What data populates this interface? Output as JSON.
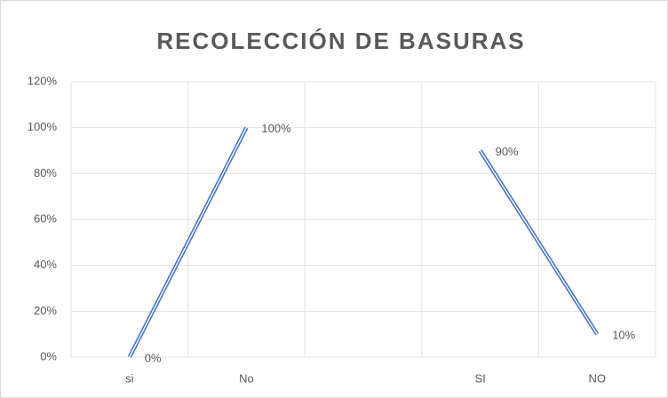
{
  "chart_data": {
    "type": "line",
    "title": "RECOLECCIÓN DE BASURAS",
    "categories": [
      "si",
      "No",
      null,
      "SI",
      "NO"
    ],
    "values": [
      0,
      100,
      null,
      90,
      10
    ],
    "value_labels": [
      "0%",
      "100%",
      null,
      "90%",
      "10%"
    ],
    "color": "#4472c4",
    "ylim": [
      0,
      120
    ],
    "yticks": [
      {
        "value": 0,
        "label": "0%"
      },
      {
        "value": 20,
        "label": "20%"
      },
      {
        "value": 40,
        "label": "40%"
      },
      {
        "value": 60,
        "label": "60%"
      },
      {
        "value": 80,
        "label": "80%"
      },
      {
        "value": 100,
        "label": "100%"
      },
      {
        "value": 120,
        "label": "120%"
      }
    ],
    "grid": true
  }
}
